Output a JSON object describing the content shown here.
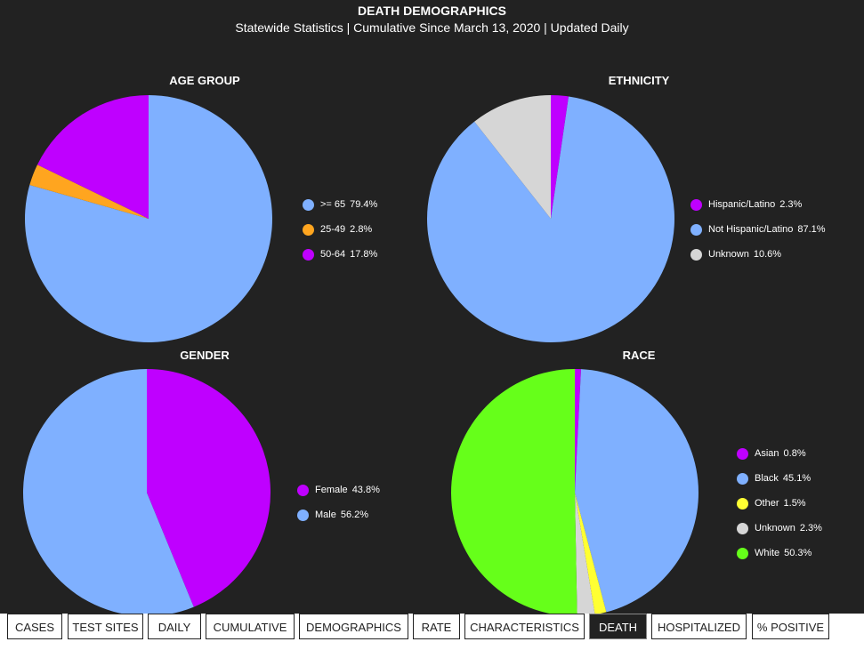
{
  "header": {
    "title": "DEATH DEMOGRAPHICS",
    "subtitle": "Statewide Statistics  |  Cumulative Since March 13, 2020  |  Updated Daily"
  },
  "colors": {
    "blue": "#7fb0ff",
    "purple": "#bf00ff",
    "orange": "#ffa51f",
    "gray": "#d6d6d6",
    "yellow": "#ffff33",
    "green": "#66ff1a"
  },
  "chart_data": [
    {
      "type": "pie",
      "title": "AGE GROUP",
      "slices": [
        {
          "label": ">= 65",
          "value": 79.4,
          "display": "79.4%",
          "color": "#7fb0ff"
        },
        {
          "label": "25-49",
          "value": 2.8,
          "display": "2.8%",
          "color": "#ffa51f"
        },
        {
          "label": "50-64",
          "value": 17.8,
          "display": "17.8%",
          "color": "#bf00ff"
        }
      ]
    },
    {
      "type": "pie",
      "title": "ETHNICITY",
      "slices": [
        {
          "label": "Hispanic/Latino",
          "value": 2.3,
          "display": "2.3%",
          "color": "#bf00ff"
        },
        {
          "label": "Not Hispanic/Latino",
          "value": 87.1,
          "display": "87.1%",
          "color": "#7fb0ff"
        },
        {
          "label": "Unknown",
          "value": 10.6,
          "display": "10.6%",
          "color": "#d6d6d6"
        }
      ]
    },
    {
      "type": "pie",
      "title": "GENDER",
      "slices": [
        {
          "label": "Female",
          "value": 43.8,
          "display": "43.8%",
          "color": "#bf00ff"
        },
        {
          "label": "Male",
          "value": 56.2,
          "display": "56.2%",
          "color": "#7fb0ff"
        }
      ]
    },
    {
      "type": "pie",
      "title": "RACE",
      "slices": [
        {
          "label": "Asian",
          "value": 0.8,
          "display": "0.8%",
          "color": "#bf00ff"
        },
        {
          "label": "Black",
          "value": 45.1,
          "display": "45.1%",
          "color": "#7fb0ff"
        },
        {
          "label": "Other",
          "value": 1.5,
          "display": "1.5%",
          "color": "#ffff33"
        },
        {
          "label": "Unknown",
          "value": 2.3,
          "display": "2.3%",
          "color": "#d6d6d6"
        },
        {
          "label": "White",
          "value": 50.3,
          "display": "50.3%",
          "color": "#66ff1a"
        }
      ]
    }
  ],
  "tabs": [
    {
      "label": "CASES",
      "active": false
    },
    {
      "label": "TEST SITES",
      "active": false
    },
    {
      "label": "DAILY",
      "active": false
    },
    {
      "label": "CUMULATIVE",
      "active": false
    },
    {
      "label": "DEMOGRAPHICS",
      "active": false
    },
    {
      "label": "RATE",
      "active": false
    },
    {
      "label": "CHARACTERISTICS",
      "active": false
    },
    {
      "label": "DEATH",
      "active": true
    },
    {
      "label": "HOSPITALIZED",
      "active": false
    },
    {
      "label": "% POSITIVE",
      "active": false
    }
  ]
}
